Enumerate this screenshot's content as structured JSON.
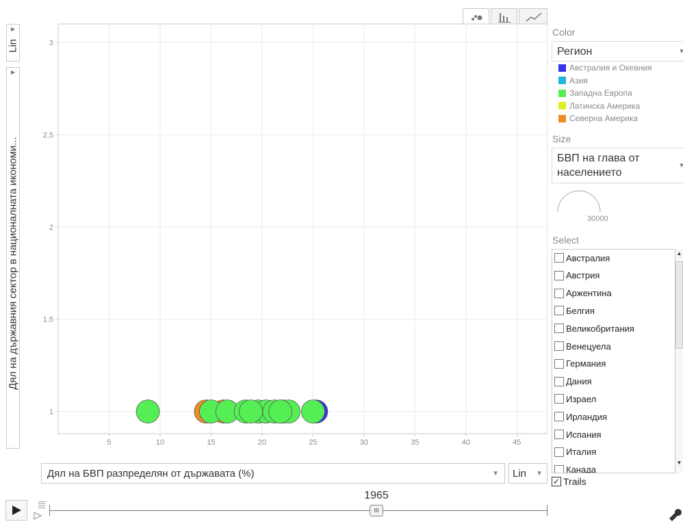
{
  "view_tabs": {
    "items": [
      {
        "name": "bubble-chart",
        "icon": "scatter-icon",
        "active": true
      },
      {
        "name": "bar-chart",
        "icon": "bar-icon",
        "active": false
      },
      {
        "name": "line-chart",
        "icon": "line-icon",
        "active": false
      }
    ]
  },
  "y_axis": {
    "scale_label": "Lin",
    "label": "Дял на държавния сектор в националната икономи..."
  },
  "x_axis": {
    "label": "Дял на БВП разпределян от държавата (%)",
    "scale_label": "Lin"
  },
  "timeline": {
    "year": "1965",
    "thumb_glyph": "III"
  },
  "panel": {
    "color_label": "Color",
    "color_value": "Регион",
    "size_label": "Size",
    "size_value_line1": "БВП на глава от",
    "size_value_line2": "населението",
    "size_gauge_value": "30000",
    "select_label": "Select",
    "trails_label": "Trails",
    "trails_checked_glyph": "✓"
  },
  "legend": [
    {
      "label": "Австралия и Океания",
      "color": "#3333ee"
    },
    {
      "label": "Азия",
      "color": "#22b4dd"
    },
    {
      "label": "Западна Европа",
      "color": "#55ee55"
    },
    {
      "label": "Латинска Америка",
      "color": "#ddee22"
    },
    {
      "label": "Северна Америка",
      "color": "#f08a22"
    }
  ],
  "select_list": [
    "Австралия",
    "Австрия",
    "Аржентина",
    "Белгия",
    "Великобритания",
    "Венецуела",
    "Германия",
    "Дания",
    "Израел",
    "Ирландия",
    "Испания",
    "Италия",
    "Канада"
  ],
  "chart_data": {
    "type": "scatter",
    "title": "",
    "xlabel": "Дял на БВП разпределян от държавата (%)",
    "ylabel": "Дял на държавния сектор в националната икономи...",
    "xlim": [
      0,
      48
    ],
    "ylim": [
      0.88,
      3.1
    ],
    "x_ticks": [
      5,
      10,
      15,
      20,
      25,
      30,
      35,
      40,
      45
    ],
    "y_ticks": [
      1,
      1.5,
      2,
      2.5,
      3
    ],
    "y_tick_labels": [
      "1",
      "1.5",
      "2",
      "2.5",
      "3"
    ],
    "grid": true,
    "points": [
      {
        "x": 14.5,
        "y": 1,
        "color": "#f08a22"
      },
      {
        "x": 16.2,
        "y": 1,
        "color": "#f08a22"
      },
      {
        "x": 22.0,
        "y": 1,
        "color": "#3333ee"
      },
      {
        "x": 25.3,
        "y": 1,
        "color": "#3333ee"
      },
      {
        "x": 8.8,
        "y": 1,
        "color": "#55ee55"
      },
      {
        "x": 15.0,
        "y": 1,
        "color": "#55ee55"
      },
      {
        "x": 16.6,
        "y": 1,
        "color": "#55ee55"
      },
      {
        "x": 18.4,
        "y": 1,
        "color": "#55ee55"
      },
      {
        "x": 19.6,
        "y": 1,
        "color": "#55ee55"
      },
      {
        "x": 20.4,
        "y": 1,
        "color": "#55ee55"
      },
      {
        "x": 21.2,
        "y": 1,
        "color": "#55ee55"
      },
      {
        "x": 22.6,
        "y": 1,
        "color": "#55ee55"
      },
      {
        "x": 18.9,
        "y": 1,
        "color": "#55ee55"
      },
      {
        "x": 21.8,
        "y": 1,
        "color": "#55ee55"
      },
      {
        "x": 25.0,
        "y": 1,
        "color": "#55ee55"
      }
    ]
  }
}
